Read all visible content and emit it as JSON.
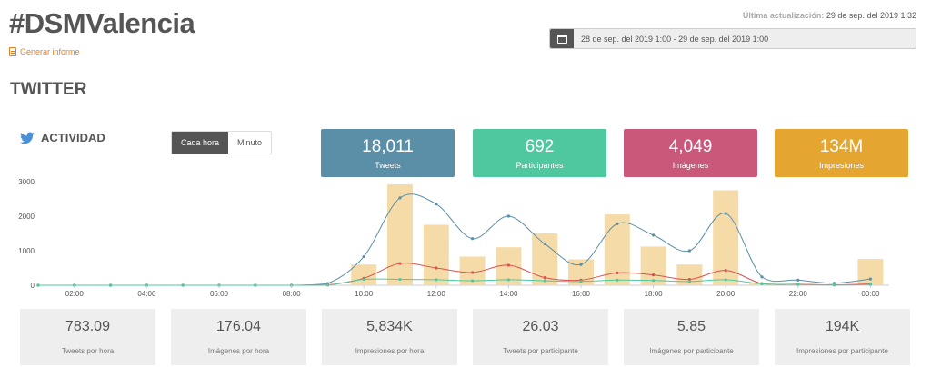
{
  "header": {
    "hashtag": "#DSMValencia",
    "report_label": "Generar informe",
    "updated_label": "Última actualización:",
    "updated_value": "29 de sep. del 2019 1:32",
    "date_range": "28 de sep. del 2019 1:00 - 29 de sep. del 2019 1:00"
  },
  "section_title": "TWITTER",
  "activity": {
    "title": "ACTIVIDAD",
    "toggle": [
      "Cada hora",
      "Minuto"
    ],
    "selected": "Cada hora"
  },
  "stats": [
    {
      "value": "18,011",
      "label": "Tweets",
      "color": "#5b8fa8"
    },
    {
      "value": "692",
      "label": "Participantes",
      "color": "#4fc8a0"
    },
    {
      "value": "4,049",
      "label": "Imágenes",
      "color": "#c9587a"
    },
    {
      "value": "134M",
      "label": "Impresiones",
      "color": "#e5a631"
    }
  ],
  "bottom_stats": [
    {
      "value": "783.09",
      "label": "Tweets por hora"
    },
    {
      "value": "176.04",
      "label": "Imágenes por hora"
    },
    {
      "value": "5,834K",
      "label": "Impresiones por hora"
    },
    {
      "value": "26.03",
      "label": "Tweets por participante"
    },
    {
      "value": "5.85",
      "label": "Imágenes por participante"
    },
    {
      "value": "194K",
      "label": "Impresiones por participante"
    }
  ],
  "chart_data": {
    "type": "bar",
    "x": [
      "01:00",
      "02:00",
      "03:00",
      "04:00",
      "05:00",
      "06:00",
      "07:00",
      "08:00",
      "09:00",
      "10:00",
      "11:00",
      "12:00",
      "13:00",
      "14:00",
      "15:00",
      "16:00",
      "17:00",
      "18:00",
      "19:00",
      "20:00",
      "21:00",
      "22:00",
      "23:00",
      "00:00"
    ],
    "x_ticks": [
      "02:00",
      "04:00",
      "06:00",
      "08:00",
      "10:00",
      "12:00",
      "14:00",
      "16:00",
      "18:00",
      "20:00",
      "22:00",
      "00:00"
    ],
    "ylim": [
      0,
      3000
    ],
    "y_ticks": [
      "0",
      "1000",
      "2000",
      "3000"
    ],
    "grid": false,
    "legend": "none",
    "series": [
      {
        "type": "bar",
        "color": "#f5dba8",
        "values": [
          0,
          0,
          0,
          0,
          0,
          0,
          0,
          0,
          0,
          600,
          2920,
          1750,
          830,
          1100,
          1500,
          750,
          2050,
          1120,
          600,
          2750,
          80,
          30,
          30,
          760
        ]
      },
      {
        "type": "line",
        "color": "#5b8fa8",
        "values": [
          0,
          0,
          0,
          0,
          0,
          0,
          0,
          0,
          50,
          830,
          2530,
          2350,
          1350,
          2000,
          1200,
          600,
          1780,
          1450,
          1000,
          2080,
          240,
          150,
          60,
          180
        ]
      },
      {
        "type": "line",
        "color": "#d9534f",
        "values": [
          0,
          0,
          0,
          0,
          0,
          0,
          0,
          0,
          10,
          200,
          630,
          500,
          370,
          580,
          220,
          150,
          360,
          300,
          170,
          430,
          50,
          30,
          10,
          40
        ]
      },
      {
        "type": "line",
        "color": "#4fc8a0",
        "values": [
          0,
          0,
          0,
          0,
          0,
          0,
          0,
          0,
          5,
          170,
          170,
          160,
          130,
          160,
          130,
          110,
          150,
          140,
          110,
          160,
          40,
          20,
          10,
          20
        ]
      }
    ]
  }
}
